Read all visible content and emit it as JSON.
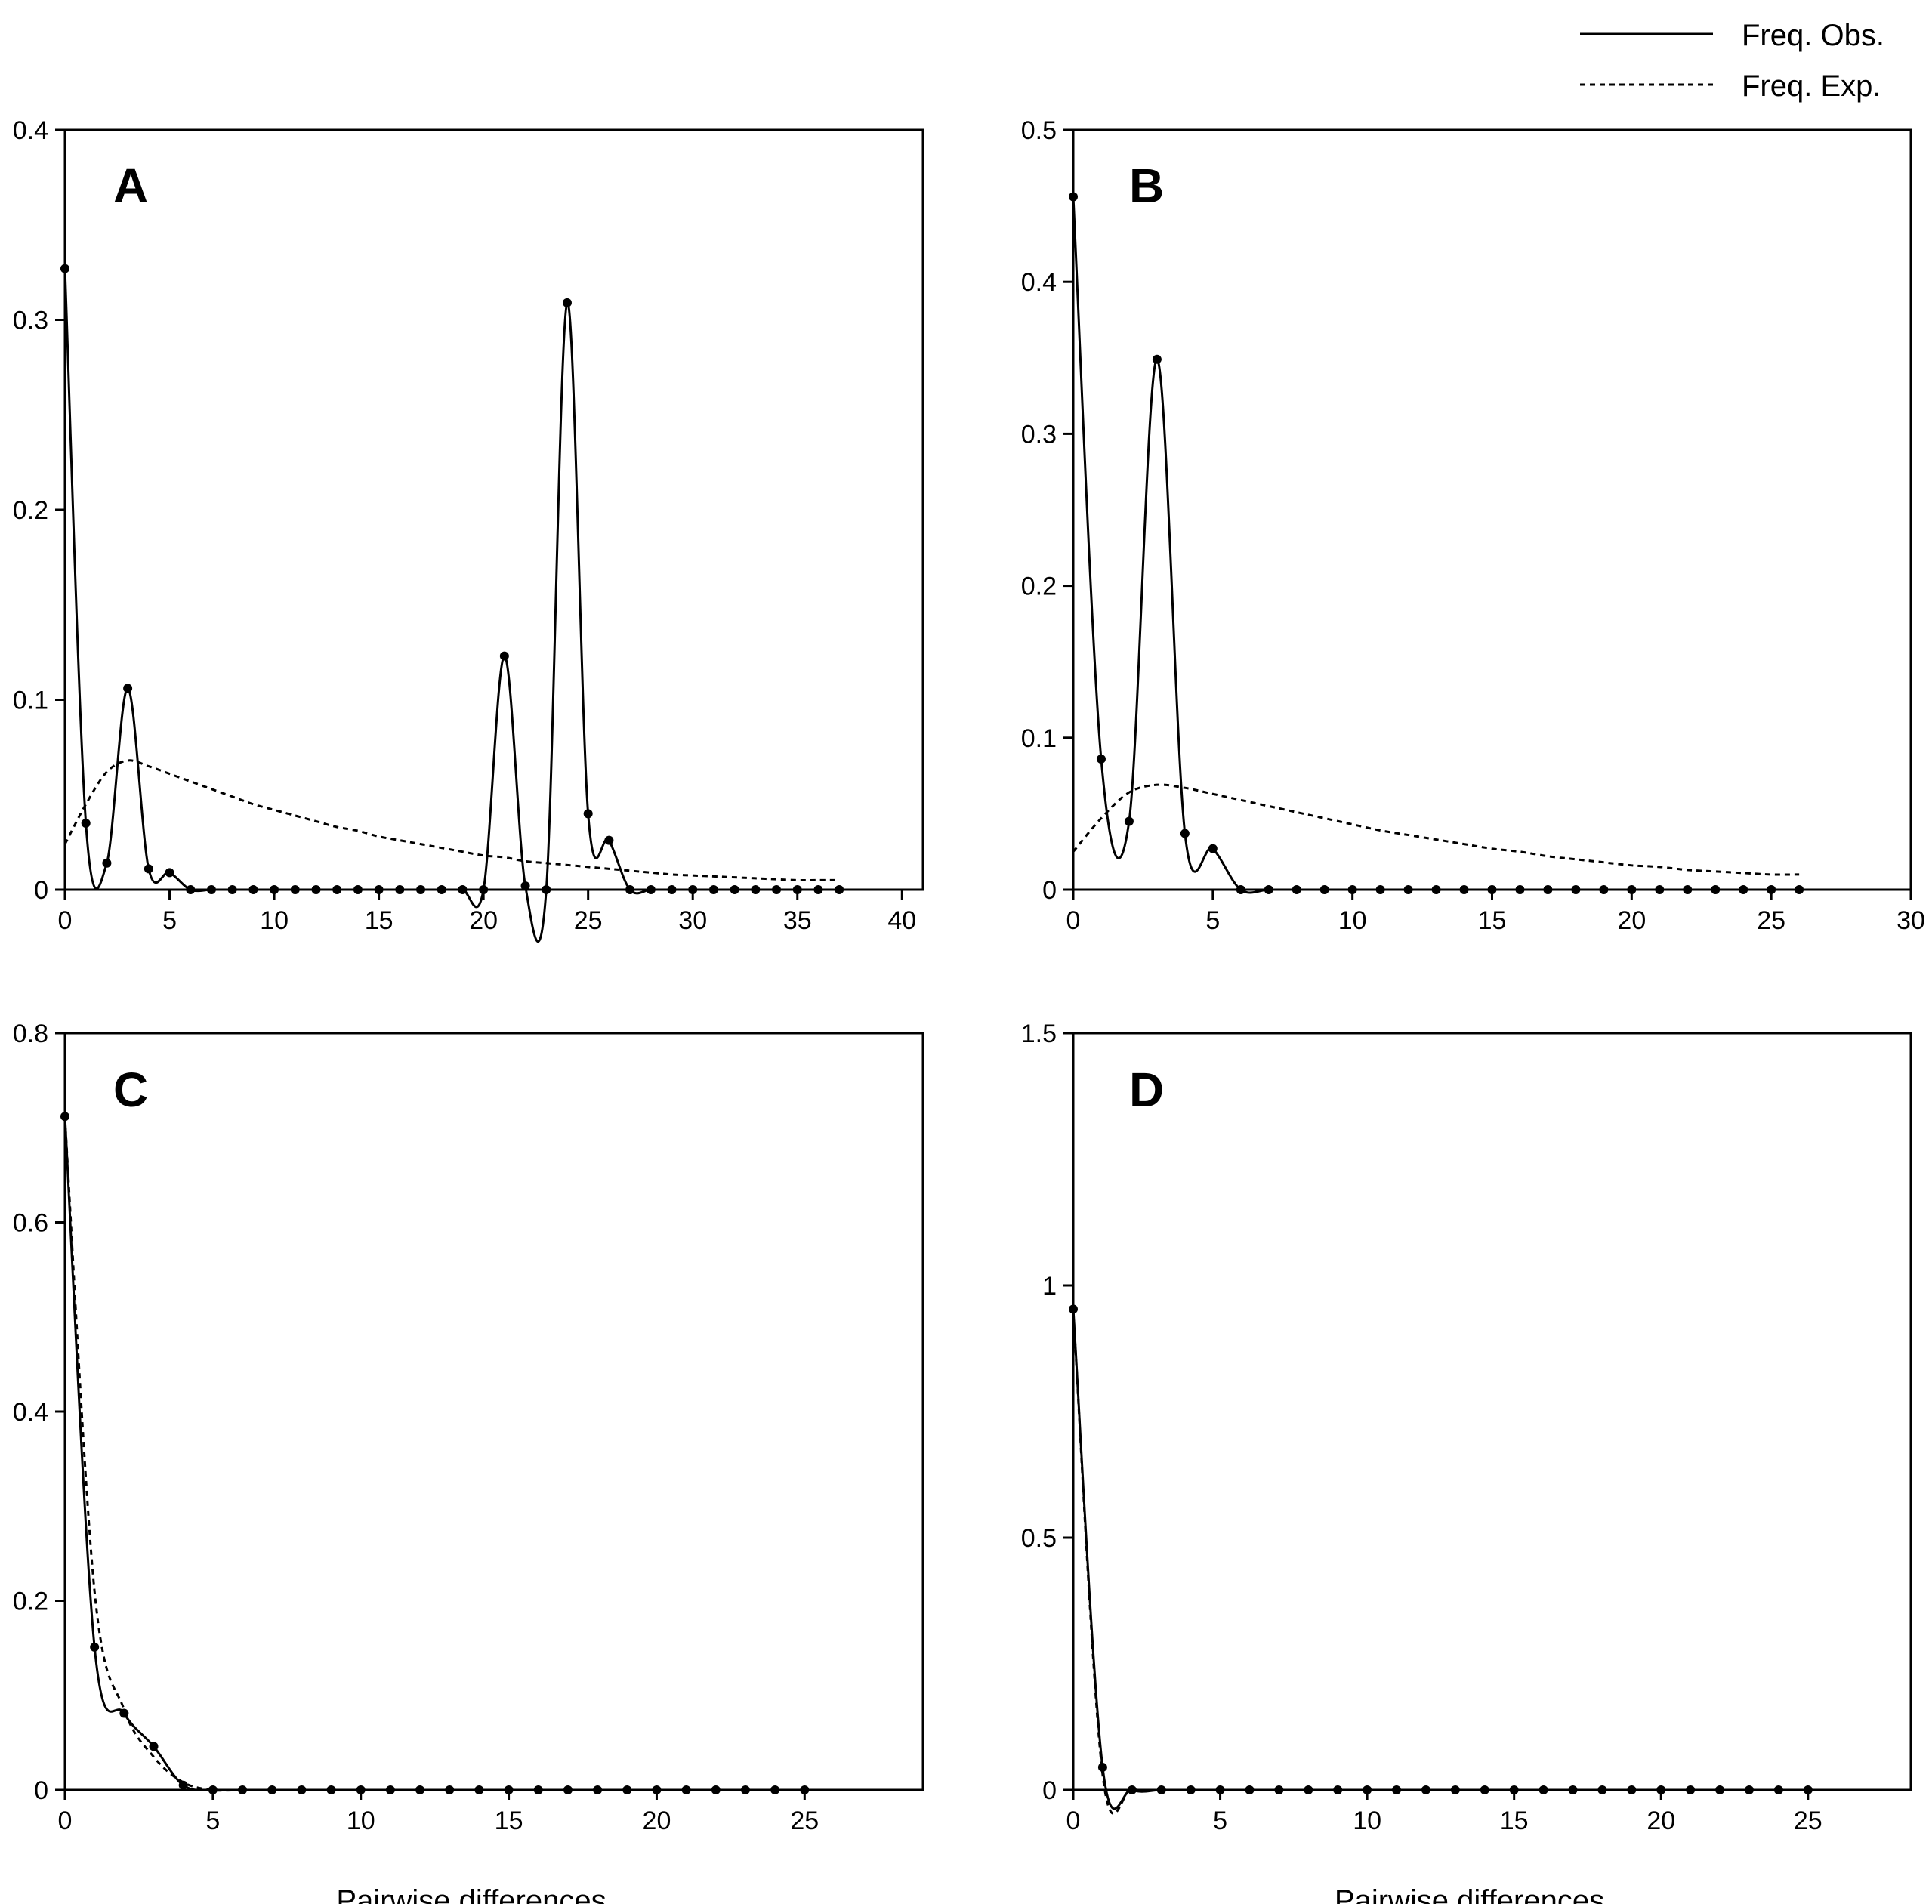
{
  "legend": {
    "observed_label": "Freq. Obs.",
    "expected_label": "Freq. Exp."
  },
  "chart_data": [
    {
      "type": "line",
      "panel": "A",
      "xlabel": "",
      "ylabel": "",
      "xlim": [
        0,
        41
      ],
      "ylim": [
        0,
        0.4
      ],
      "xticks": [
        0,
        5,
        10,
        15,
        20,
        25,
        30,
        35,
        40
      ],
      "yticks": [
        0,
        0.1,
        0.2,
        0.3,
        0.4
      ],
      "ytick_labels": [
        "0",
        "0.1",
        "0.2",
        "0.3",
        "0.4"
      ],
      "series": [
        {
          "name": "Freq. Obs.",
          "style": "solid",
          "markers": true,
          "x": [
            0,
            1,
            2,
            3,
            4,
            5,
            6,
            7,
            8,
            9,
            10,
            11,
            12,
            13,
            14,
            15,
            16,
            17,
            18,
            19,
            20,
            21,
            22,
            23,
            24,
            25,
            26,
            27,
            28,
            29,
            30,
            31,
            32,
            33,
            34,
            35,
            36,
            37
          ],
          "values": [
            0.327,
            0.035,
            0.014,
            0.106,
            0.011,
            0.009,
            0,
            0,
            0,
            0,
            0,
            0,
            0,
            0,
            0,
            0,
            0,
            0,
            0,
            0,
            0,
            0.123,
            0.002,
            0,
            0.309,
            0.04,
            0.026,
            0,
            0,
            0,
            0,
            0,
            0,
            0,
            0,
            0,
            0,
            0
          ]
        },
        {
          "name": "Freq. Exp.",
          "style": "dashed",
          "markers": false,
          "x": [
            0,
            1,
            2,
            3,
            4,
            5,
            6,
            7,
            8,
            9,
            10,
            11,
            12,
            13,
            14,
            15,
            16,
            17,
            18,
            19,
            20,
            21,
            22,
            23,
            24,
            25,
            26,
            27,
            28,
            29,
            30,
            31,
            32,
            33,
            34,
            35,
            36,
            37
          ],
          "values": [
            0.024,
            0.045,
            0.062,
            0.068,
            0.065,
            0.061,
            0.057,
            0.053,
            0.049,
            0.045,
            0.042,
            0.039,
            0.036,
            0.033,
            0.031,
            0.028,
            0.026,
            0.024,
            0.022,
            0.02,
            0.018,
            0.017,
            0.015,
            0.014,
            0.013,
            0.012,
            0.011,
            0.01,
            0.009,
            0.008,
            0.0075,
            0.007,
            0.0065,
            0.006,
            0.0055,
            0.005,
            0.005,
            0.005
          ]
        }
      ]
    },
    {
      "type": "line",
      "panel": "B",
      "xlabel": "",
      "ylabel": "",
      "xlim": [
        0,
        30
      ],
      "ylim": [
        0,
        0.5
      ],
      "xticks": [
        0,
        5,
        10,
        15,
        20,
        25,
        30
      ],
      "yticks": [
        0,
        0.1,
        0.2,
        0.3,
        0.4,
        0.5
      ],
      "ytick_labels": [
        "0",
        "0.1",
        "0.2",
        "0.3",
        "0.4",
        "0.5"
      ],
      "series": [
        {
          "name": "Freq. Obs.",
          "style": "solid",
          "markers": true,
          "x": [
            0,
            1,
            2,
            3,
            4,
            5,
            6,
            7,
            8,
            9,
            10,
            11,
            12,
            13,
            14,
            15,
            16,
            17,
            18,
            19,
            20,
            21,
            22,
            23,
            24,
            25,
            26
          ],
          "values": [
            0.456,
            0.086,
            0.045,
            0.349,
            0.037,
            0.027,
            0,
            0,
            0,
            0,
            0,
            0,
            0,
            0,
            0,
            0,
            0,
            0,
            0,
            0,
            0,
            0,
            0,
            0,
            0,
            0,
            0
          ]
        },
        {
          "name": "Freq. Exp.",
          "style": "dashed",
          "markers": false,
          "x": [
            0,
            1,
            2,
            3,
            4,
            5,
            6,
            7,
            8,
            9,
            10,
            11,
            12,
            13,
            14,
            15,
            16,
            17,
            18,
            19,
            20,
            21,
            22,
            23,
            24,
            25,
            26
          ],
          "values": [
            0.025,
            0.047,
            0.064,
            0.069,
            0.067,
            0.063,
            0.059,
            0.055,
            0.051,
            0.047,
            0.043,
            0.039,
            0.036,
            0.033,
            0.03,
            0.027,
            0.025,
            0.022,
            0.02,
            0.018,
            0.016,
            0.015,
            0.013,
            0.012,
            0.011,
            0.01,
            0.01
          ]
        }
      ]
    },
    {
      "type": "line",
      "panel": "C",
      "xlabel": "Pairwise differences",
      "ylabel": "",
      "xlim": [
        0,
        29
      ],
      "ylim": [
        0,
        0.8
      ],
      "xticks": [
        0,
        5,
        10,
        15,
        20,
        25
      ],
      "yticks": [
        0,
        0.2,
        0.4,
        0.6,
        0.8
      ],
      "ytick_labels": [
        "0",
        "0.2",
        "0.4",
        "0.6",
        "0.8"
      ],
      "series": [
        {
          "name": "Freq. Obs.",
          "style": "solid",
          "markers": true,
          "x": [
            0,
            1,
            2,
            3,
            4,
            5,
            6,
            7,
            8,
            9,
            10,
            11,
            12,
            13,
            14,
            15,
            16,
            17,
            18,
            19,
            20,
            21,
            22,
            23,
            24,
            25
          ],
          "values": [
            0.712,
            0.151,
            0.081,
            0.046,
            0.005,
            0,
            0,
            0,
            0,
            0,
            0,
            0,
            0,
            0,
            0,
            0,
            0,
            0,
            0,
            0,
            0,
            0,
            0,
            0,
            0,
            0
          ]
        },
        {
          "name": "Freq. Exp.",
          "style": "dashed",
          "markers": false,
          "x": [
            0,
            1,
            2,
            3,
            4,
            5,
            6,
            7,
            8,
            9,
            10,
            11,
            12,
            13,
            14,
            15,
            16,
            17,
            18,
            19,
            20,
            21,
            22,
            23,
            24,
            25
          ],
          "values": [
            0.71,
            0.21,
            0.085,
            0.035,
            0.008,
            0,
            0,
            0,
            0,
            0,
            0,
            0,
            0,
            0,
            0,
            0,
            0,
            0,
            0,
            0,
            0,
            0,
            0,
            0,
            0,
            0
          ]
        }
      ]
    },
    {
      "type": "line",
      "panel": "D",
      "xlabel": "Pairwise differences",
      "ylabel": "",
      "xlim": [
        0,
        28.5
      ],
      "ylim": [
        0,
        1.5
      ],
      "xticks": [
        0,
        5,
        10,
        15,
        20,
        25
      ],
      "yticks": [
        0,
        0.5,
        1,
        1.5
      ],
      "ytick_labels": [
        "0",
        "0.5",
        "1",
        "1.5"
      ],
      "series": [
        {
          "name": "Freq. Obs.",
          "style": "solid",
          "markers": true,
          "x": [
            0,
            1,
            2,
            3,
            4,
            5,
            6,
            7,
            8,
            9,
            10,
            11,
            12,
            13,
            14,
            15,
            16,
            17,
            18,
            19,
            20,
            21,
            22,
            23,
            24,
            25
          ],
          "values": [
            0.953,
            0.045,
            0,
            0,
            0,
            0,
            0,
            0,
            0,
            0,
            0,
            0,
            0,
            0,
            0,
            0,
            0,
            0,
            0,
            0,
            0,
            0,
            0,
            0,
            0,
            0
          ]
        },
        {
          "name": "Freq. Exp.",
          "style": "dashed",
          "markers": false,
          "x": [
            0,
            1,
            2,
            3,
            4,
            5,
            6,
            7,
            8,
            9,
            10,
            11,
            12,
            13,
            14,
            15,
            16,
            17,
            18,
            19,
            20,
            21,
            22,
            23,
            24,
            25
          ],
          "values": [
            0.95,
            0.03,
            0.002,
            0,
            0,
            0,
            0,
            0,
            0,
            0,
            0,
            0,
            0,
            0,
            0,
            0,
            0,
            0,
            0,
            0,
            0,
            0,
            0,
            0,
            0,
            0
          ]
        }
      ]
    }
  ]
}
